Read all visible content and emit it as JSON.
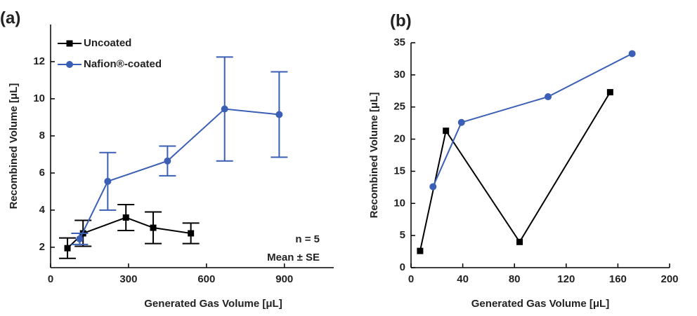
{
  "chart_data": [
    {
      "type": "line",
      "panel_label": "(a)",
      "x_label": "Generated Gas Volume [μL]",
      "y_label": "Recombined Volume [μL]",
      "xlim": [
        0,
        1090
      ],
      "ylim": [
        0.9,
        14
      ],
      "xticks": [
        0,
        300,
        600,
        900
      ],
      "yticks": [
        2,
        4,
        6,
        8,
        10,
        12
      ],
      "legend": "top-left",
      "annotations": [
        "n = 5",
        "Mean ± SE"
      ],
      "series": [
        {
          "name": "Uncoated",
          "color": "#000000",
          "marker": "square",
          "x": [
            65,
            125,
            290,
            395,
            540
          ],
          "values": [
            1.95,
            2.75,
            3.6,
            3.05,
            2.75
          ],
          "errors": [
            0.55,
            0.7,
            0.7,
            0.85,
            0.55
          ]
        },
        {
          "name": "Nafion®-coated",
          "color": "#3a5fb5",
          "marker": "circle",
          "x": [
            112,
            220,
            450,
            670,
            880
          ],
          "values": [
            2.45,
            5.55,
            6.65,
            9.45,
            9.15
          ],
          "errors": [
            0.3,
            1.55,
            0.8,
            2.8,
            2.3
          ]
        }
      ]
    },
    {
      "type": "line",
      "panel_label": "(b)",
      "x_label": "Generated Gas Volume [μL]",
      "y_label": "Recombined Volume [μL]",
      "xlim": [
        0,
        200
      ],
      "ylim": [
        0,
        35
      ],
      "xticks": [
        0,
        40,
        80,
        120,
        160,
        200
      ],
      "yticks": [
        0,
        5,
        10,
        15,
        20,
        25,
        30,
        35
      ],
      "series": [
        {
          "color": "#000000",
          "marker": "square",
          "x": [
            7,
            27,
            84,
            154
          ],
          "values": [
            2.6,
            21.3,
            4.0,
            27.3
          ]
        },
        {
          "color": "#3a5fb5",
          "marker": "circle",
          "x": [
            17,
            39,
            106,
            171
          ],
          "values": [
            12.6,
            22.6,
            26.6,
            33.3
          ]
        }
      ]
    }
  ]
}
